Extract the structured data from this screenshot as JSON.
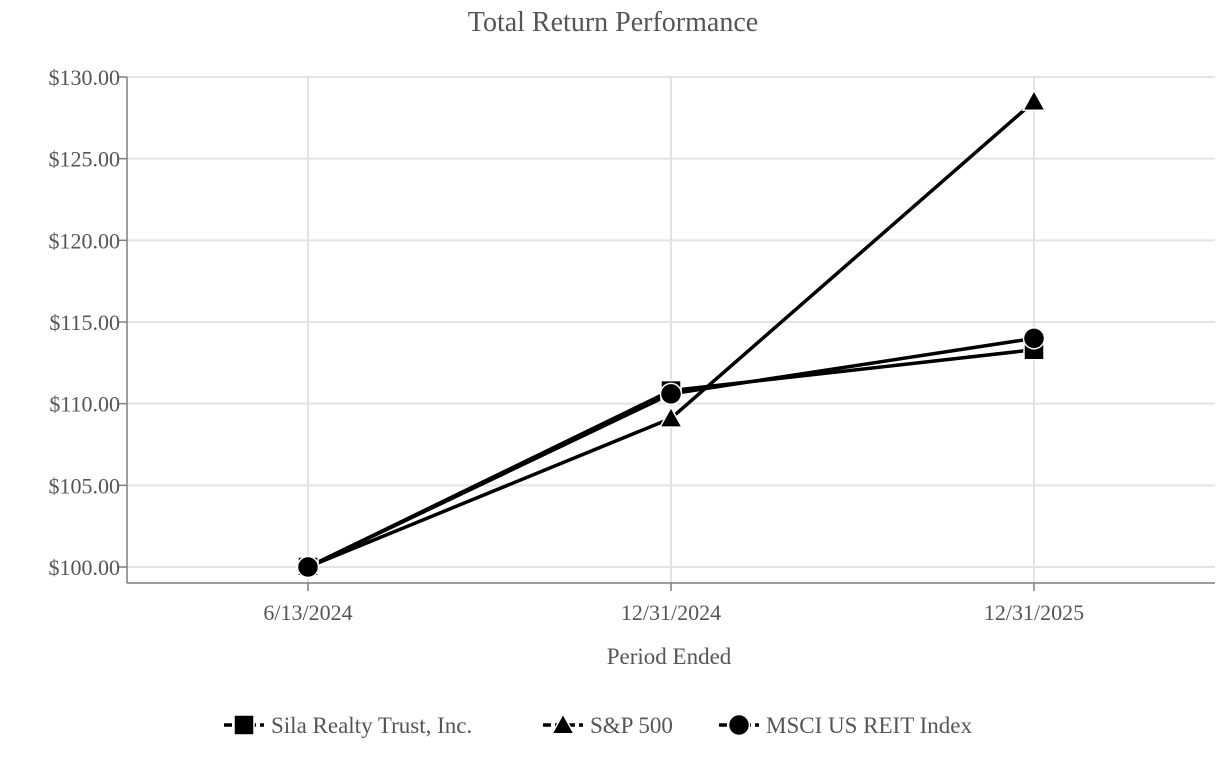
{
  "chart_data": {
    "type": "line",
    "title": "Total Return Performance",
    "xlabel": "Period Ended",
    "ylabel": "",
    "categories": [
      "6/13/2024",
      "12/31/2024",
      "12/31/2025"
    ],
    "y_ticks": [
      "$100.00",
      "$105.00",
      "$110.00",
      "$115.00",
      "$120.00",
      "$125.00",
      "$130.00"
    ],
    "ylim": [
      100,
      130
    ],
    "grid": true,
    "legend_position": "bottom",
    "series": [
      {
        "name": "Sila Realty Trust, Inc.",
        "marker": "square",
        "values": [
          100.0,
          110.8,
          113.3
        ]
      },
      {
        "name": "S&P 500",
        "marker": "triangle",
        "values": [
          100.0,
          109.1,
          128.5
        ]
      },
      {
        "name": "MSCI US REIT Index",
        "marker": "circle",
        "values": [
          100.0,
          110.6,
          114.0
        ]
      }
    ],
    "colors": {
      "line": "#000000",
      "grid": "#e3e3e3",
      "axis": "#7f7f7f",
      "text": "#555555"
    }
  }
}
